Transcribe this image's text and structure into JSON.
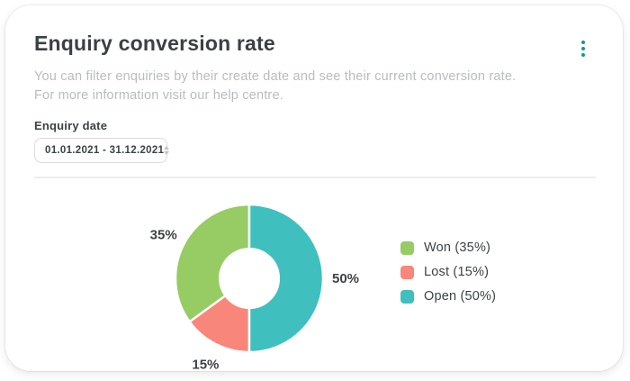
{
  "card": {
    "title": "Enquiry conversion rate",
    "description_line1": "You can filter enquiries by their create date and see their current conversion rate.",
    "description_line2": "For more information visit our help centre.",
    "accent_color": "#12998c"
  },
  "filter": {
    "label": "Enquiry date",
    "value": "01.01.2021 - 31.12.2021"
  },
  "chart_data": {
    "type": "pie",
    "donut": true,
    "hole_ratio": 0.4,
    "title": "Enquiry conversion rate",
    "labels": [
      "Won",
      "Lost",
      "Open"
    ],
    "values": [
      35,
      15,
      50
    ],
    "colors": [
      "#97cb63",
      "#f9867a",
      "#3fbfbe"
    ],
    "slice_labels": [
      "35%",
      "15%",
      "50%"
    ],
    "legend_entries": [
      "Won (35%)",
      "Lost (15%)",
      "Open (50%)"
    ],
    "legend_position": "right",
    "separator_color": "#ffffff"
  }
}
